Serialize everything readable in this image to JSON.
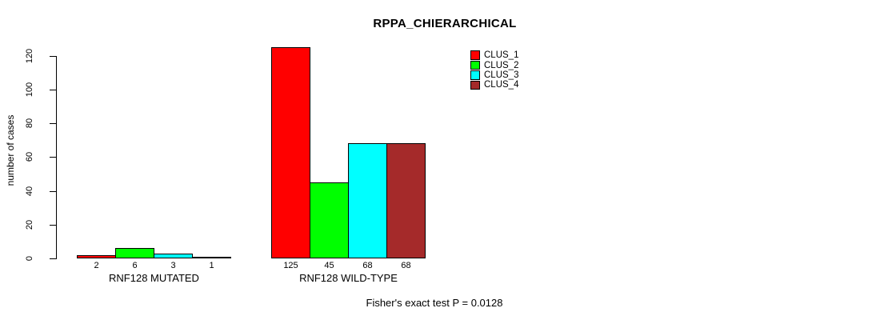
{
  "chart_data": {
    "type": "bar",
    "title": "RPPA_CHIERARCHICAL",
    "ylabel": "number of cases",
    "xlabel": "",
    "footnote": "Fisher's exact test P = 0.0128",
    "yticks": [
      0,
      20,
      40,
      60,
      80,
      100,
      120
    ],
    "ylim": [
      0,
      125
    ],
    "grid": false,
    "legend_position": "top-right",
    "categories": [
      "RNF128 MUTATED",
      "RNF128 WILD-TYPE"
    ],
    "series": [
      {
        "name": "CLUS_1",
        "color": "#ff0000",
        "values": [
          2,
          125
        ]
      },
      {
        "name": "CLUS_2",
        "color": "#00ff00",
        "values": [
          6,
          45
        ]
      },
      {
        "name": "CLUS_3",
        "color": "#00ffff",
        "values": [
          3,
          68
        ]
      },
      {
        "name": "CLUS_4",
        "color": "#a52a2a",
        "values": [
          1,
          68
        ]
      }
    ],
    "bar_value_labels": [
      [
        2,
        6,
        3,
        1
      ],
      [
        125,
        45,
        68,
        68
      ]
    ]
  }
}
